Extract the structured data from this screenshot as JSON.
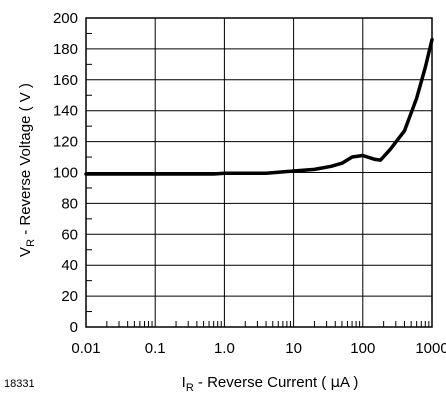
{
  "chart_data": {
    "type": "line",
    "title": "",
    "xlabel": {
      "main": "I",
      "sub": "R",
      "rest_prefix": " - Reverse Current ( ",
      "mu": "μ",
      "unit": "A )"
    },
    "ylabel": {
      "main": "V",
      "sub": "R",
      "rest": " - Reverse Voltage ( V )"
    },
    "x_scale": "log",
    "xlim": [
      0.01,
      1000
    ],
    "ylim": [
      0,
      200
    ],
    "grid": true,
    "x_tick_values": [
      0.01,
      0.1,
      1,
      10,
      100,
      1000
    ],
    "x_tick_labels": [
      "0.01",
      "0.1",
      "1.0",
      "10",
      "100",
      "1000"
    ],
    "y_tick_values": [
      0,
      20,
      40,
      60,
      80,
      100,
      120,
      140,
      160,
      180,
      200
    ],
    "y_tick_labels": [
      "0",
      "20",
      "40",
      "60",
      "80",
      "100",
      "120",
      "140",
      "160",
      "180",
      "200"
    ],
    "series": [
      {
        "x": [
          0.01,
          0.1,
          0.7,
          1.0,
          4.0,
          10,
          20,
          35,
          50,
          70,
          100,
          150,
          180,
          250,
          400,
          600,
          800,
          1000
        ],
        "y": [
          99,
          99,
          99,
          99.5,
          99.5,
          101,
          102,
          104,
          106,
          110,
          111,
          108.5,
          108,
          115,
          127,
          148,
          168,
          186
        ]
      }
    ]
  },
  "figure_id": "18331",
  "colors": {
    "line": "#000000",
    "grid": "#000000",
    "background": "#ffffff"
  }
}
